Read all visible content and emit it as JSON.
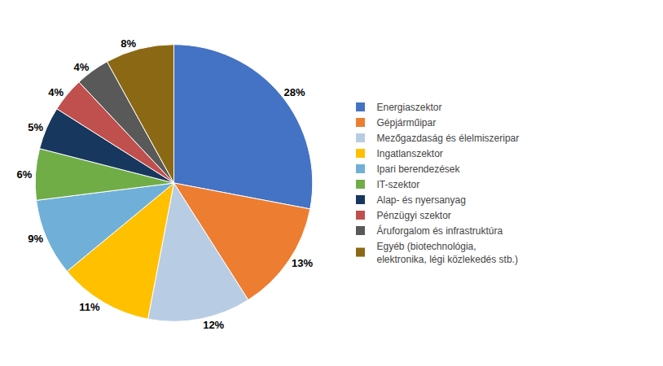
{
  "chart_data": {
    "type": "pie",
    "categories": [
      "Energiaszektor",
      "Gépjárműipar",
      "Mezőgazdaság és élelmiszeripar",
      "Ingatlanszektor",
      "Ipari berendezések",
      "IT-szektor",
      "Alap- és nyersanyag",
      "Pénzügyi szektor",
      "Áruforgalom és infrastruktúra",
      "Egyéb (biotechnológia,\nelektronika, légi közlekedés stb.)"
    ],
    "values": [
      28,
      13,
      12,
      11,
      9,
      6,
      5,
      4,
      4,
      8
    ],
    "value_labels": [
      "28%",
      "13%",
      "12%",
      "11%",
      "9%",
      "6%",
      "5%",
      "4%",
      "4%",
      "8%"
    ],
    "colors": [
      "#4472C4",
      "#ED7D31",
      "#B8CCE4",
      "#FFC000",
      "#70B0D8",
      "#70AD47",
      "#17375E",
      "#C0504D",
      "#595959",
      "#8B6914"
    ],
    "data_labels": true,
    "legend": "right"
  }
}
